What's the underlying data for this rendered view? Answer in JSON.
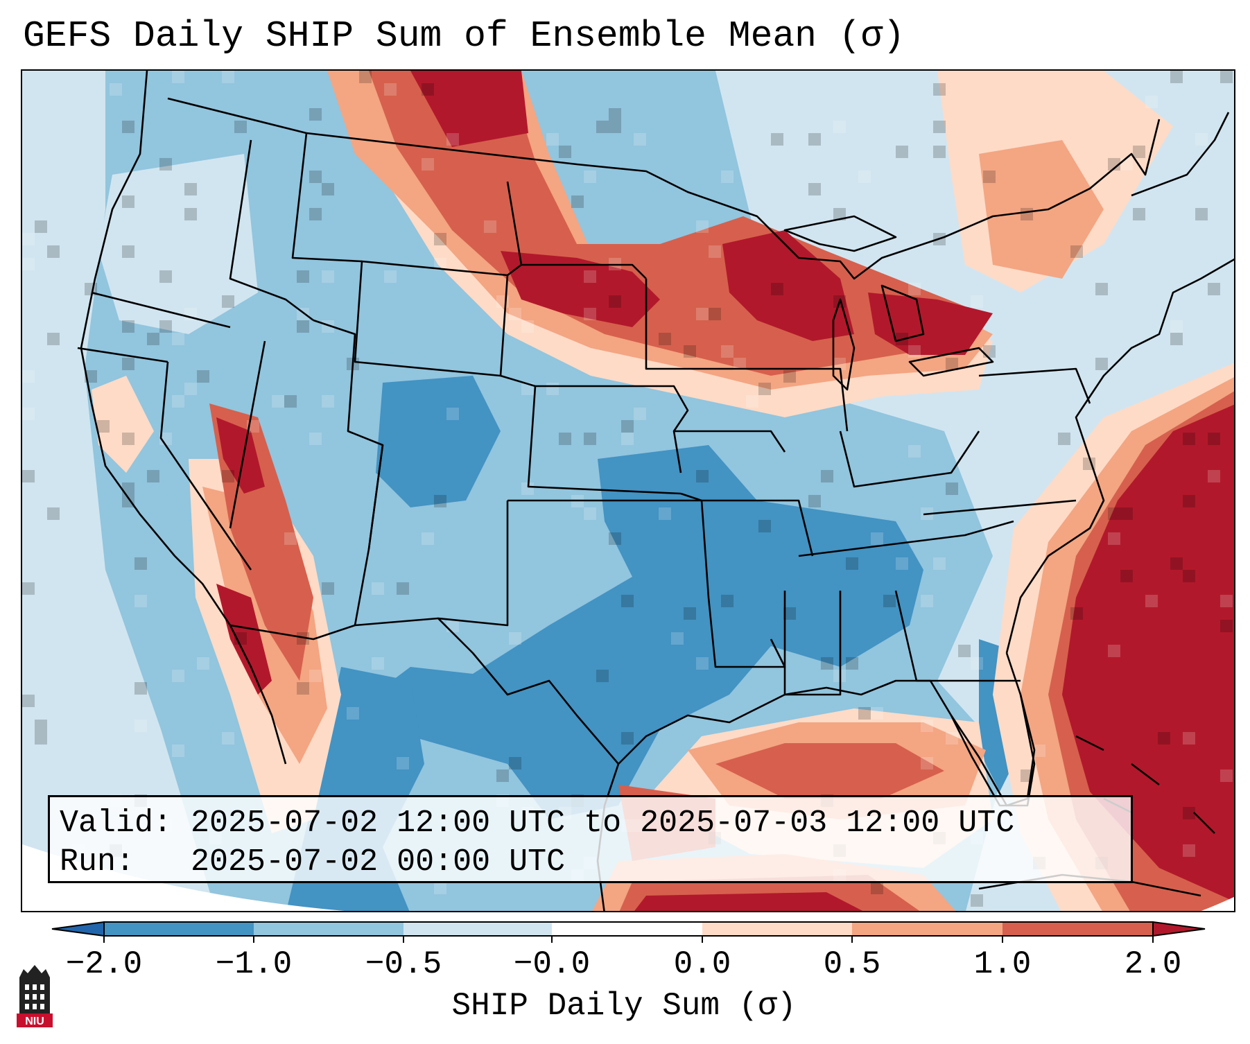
{
  "title": "GEFS Daily SHIP Sum of Ensemble Mean (σ)",
  "map": {
    "region": "Contiguous United States",
    "variable": "SHIP daily sum anomaly",
    "colors": {
      "ocean_neutral": "#d1e5f0",
      "blue_dark": "#2166ac",
      "blue": "#4393c3",
      "blue_light": "#92c5de",
      "blue_pale": "#d1e5f0",
      "red_pale": "#fddbc7",
      "red_light": "#f4a582",
      "red": "#d6604d",
      "red_dark": "#b2182b",
      "boundary": "#000000"
    }
  },
  "info": {
    "valid_label": "Valid:",
    "valid_value": "2025-07-02 12:00 UTC to 2025-07-03 12:00 UTC",
    "run_label": "Run:",
    "run_value": "2025-07-02 00:00 UTC"
  },
  "colorbar": {
    "label": "SHIP Daily Sum (σ)",
    "ticks": [
      "−2.0",
      "−1.0",
      "−0.5",
      "−0.0",
      "0.0",
      "0.5",
      "1.0",
      "2.0"
    ],
    "bins": [
      "#2166ac",
      "#4393c3",
      "#92c5de",
      "#d1e5f0",
      "#ffffff",
      "#fddbc7",
      "#f4a582",
      "#d6604d",
      "#b2182b"
    ]
  },
  "logo": {
    "text": "NIU"
  }
}
